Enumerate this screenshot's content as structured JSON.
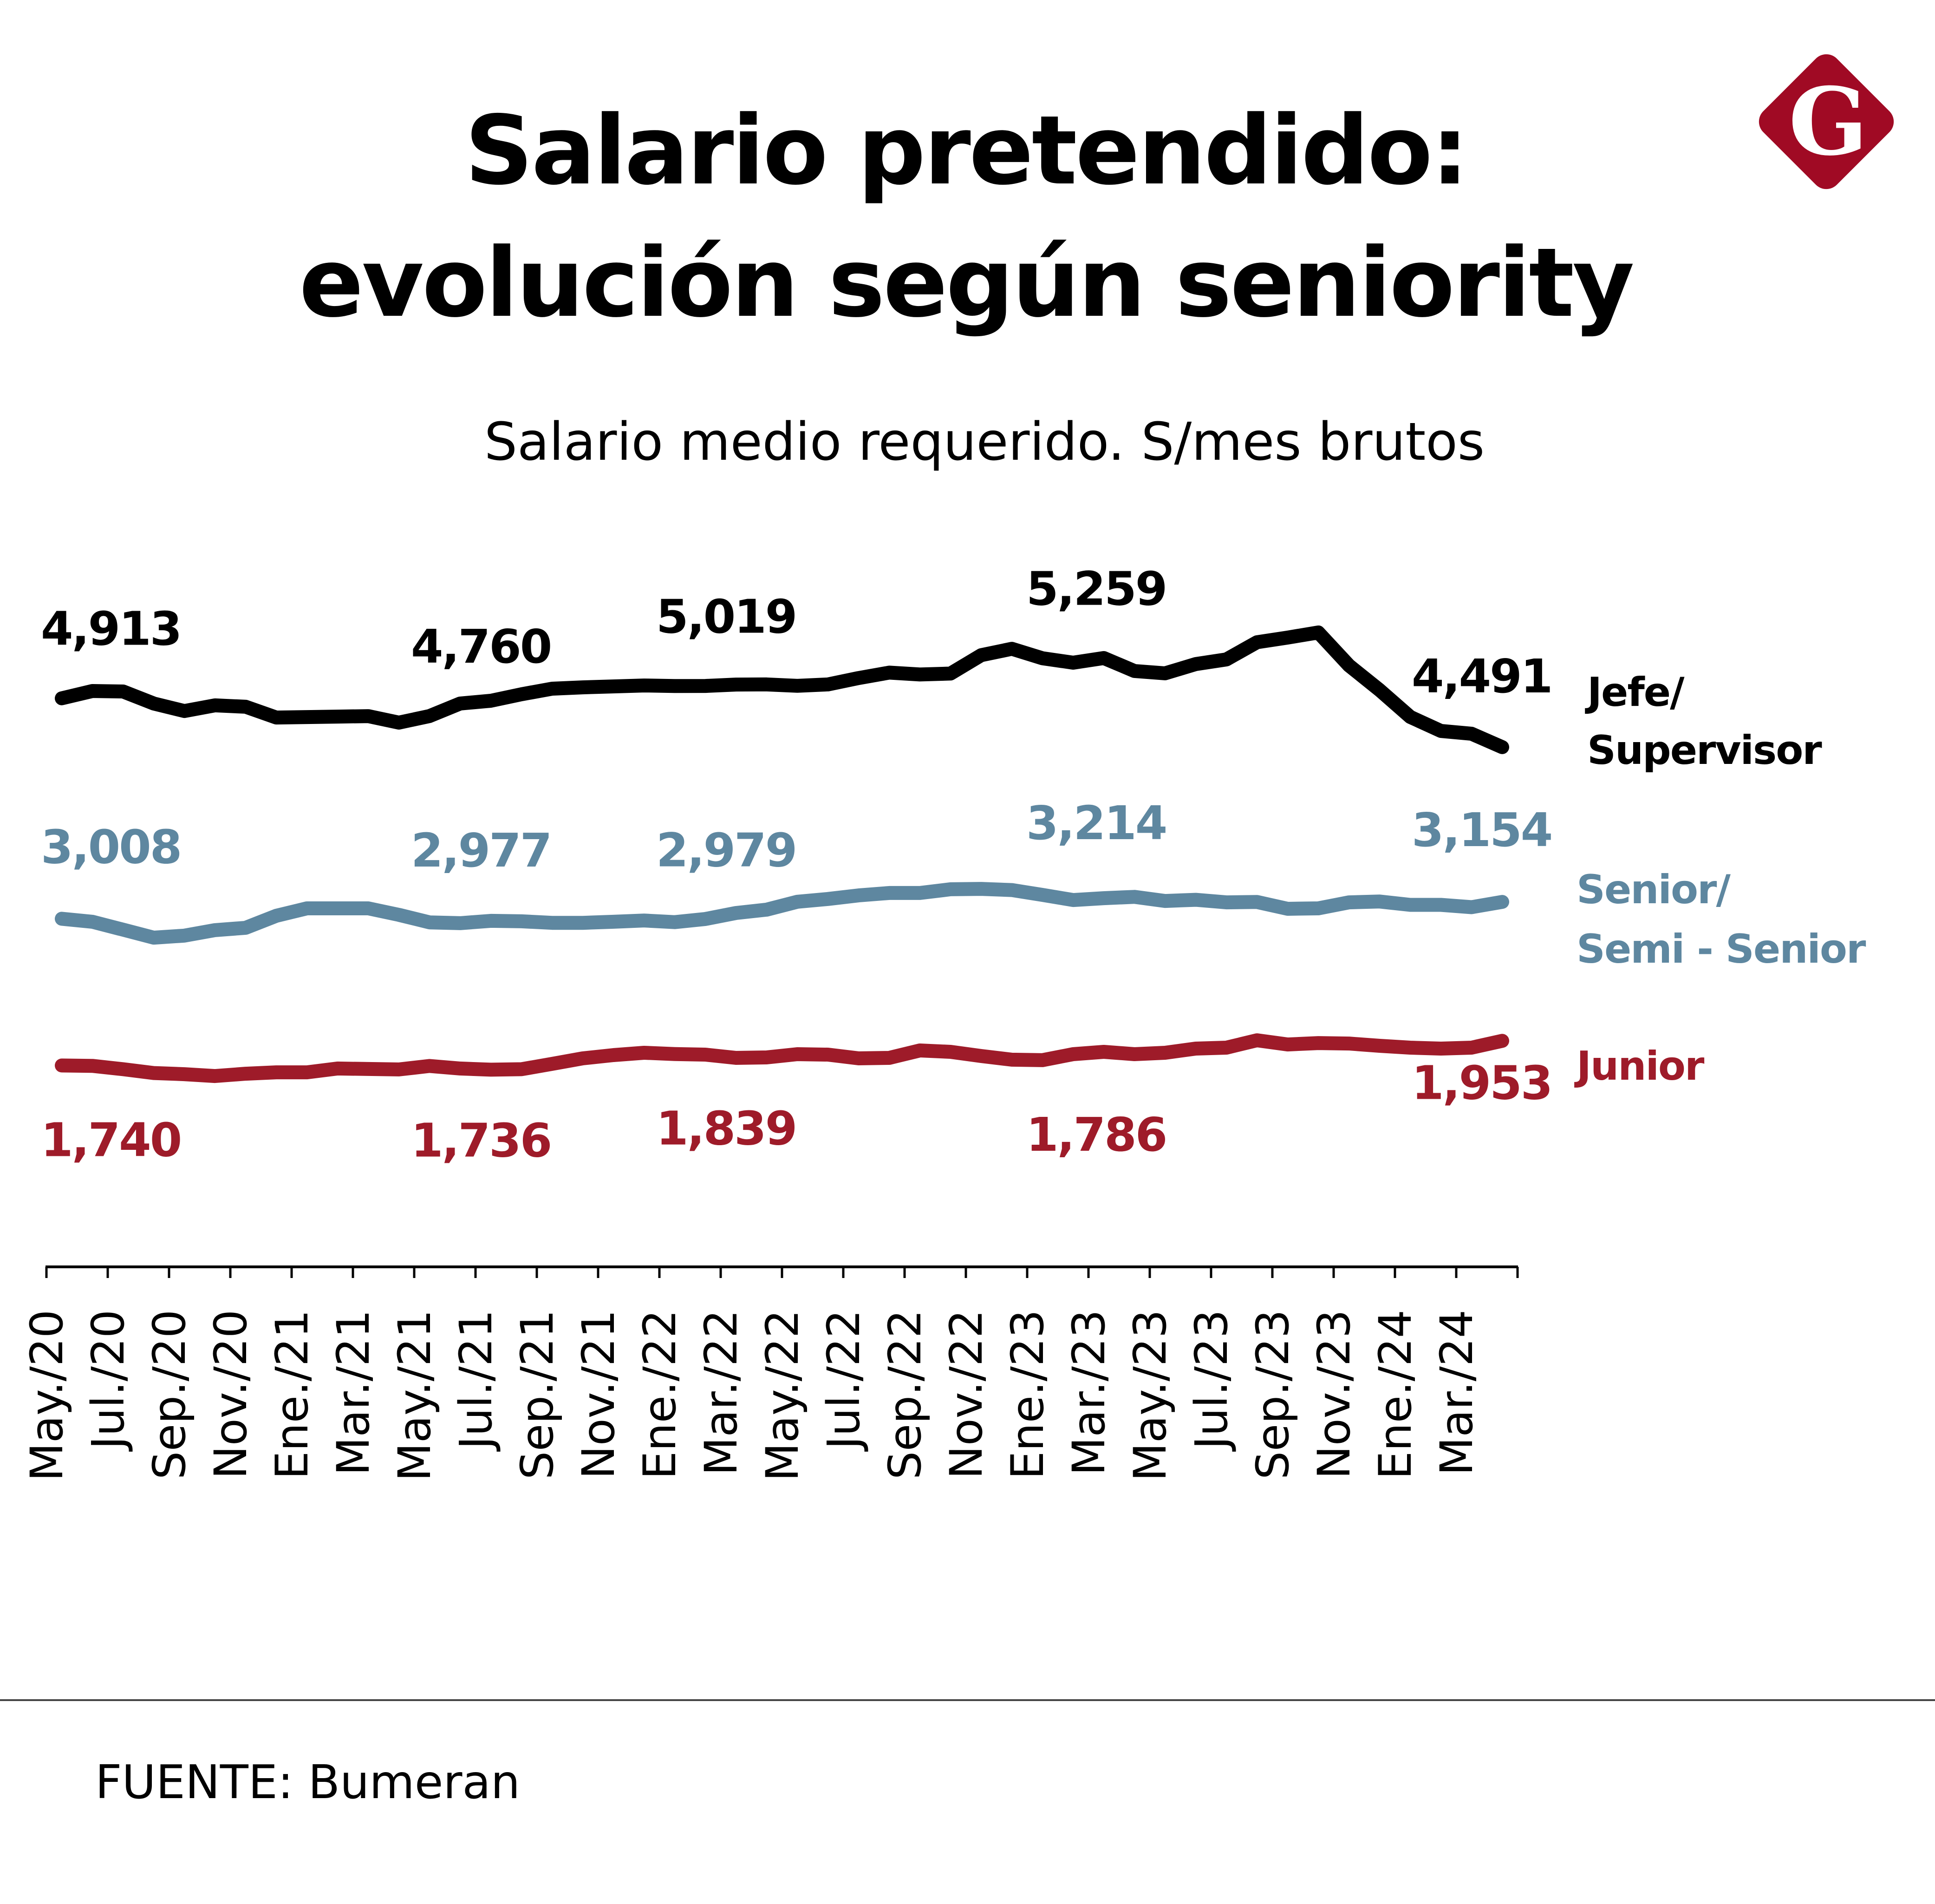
{
  "header": {
    "title_line1": "Salario pretendido:",
    "title_line2": "evolución según seniority",
    "subtitle": "Salario medio requerido. S/mes brutos",
    "logo_letter": "G",
    "logo_icon": "diamond-g-logo-icon"
  },
  "footer": {
    "source": "FUENTE: Bumeran"
  },
  "colors": {
    "jefe": "#000000",
    "senior": "#5e87a0",
    "junior": "#9e1b29",
    "logo": "#a00a24"
  },
  "chart_data": {
    "type": "line",
    "title": "Salario pretendido: evolución según seniority",
    "subtitle": "Salario medio requerido. S/mes brutos",
    "xlabel": "",
    "ylabel": "",
    "ylim": [
      0,
      5500
    ],
    "grid": false,
    "legend": "right (inline labels at line ends)",
    "x": [
      "May./20",
      "Jun./20",
      "Jul./20",
      "Ago./20",
      "Sep./20",
      "Oct./20",
      "Nov./20",
      "Dic./20",
      "Ene./21",
      "Feb./21",
      "Mar./21",
      "Abr./21",
      "May./21",
      "Jun./21",
      "Jul./21",
      "Ago./21",
      "Sep./21",
      "Oct./21",
      "Nov./21",
      "Dic./21",
      "Ene./22",
      "Feb./22",
      "Mar./22",
      "Abr./22",
      "May./22",
      "Jun./22",
      "Jul./22",
      "Ago./22",
      "Sep./22",
      "Oct./22",
      "Nov./22",
      "Dic./22",
      "Ene./23",
      "Feb./23",
      "Mar./23",
      "Abr./23",
      "May./23",
      "Jun./23",
      "Jul./23",
      "Ago./23",
      "Sep./23",
      "Oct./23",
      "Nov./23",
      "Dic./23",
      "Ene./24",
      "Feb./24",
      "Mar./24",
      "Abr./24"
    ],
    "tick_labels": [
      "May./20",
      "Jul./20",
      "Sep./20",
      "Nov./20",
      "Ene./21",
      "Mar./21",
      "May./21",
      "Jul./21",
      "Sep./21",
      "Nov./21",
      "Ene./22",
      "Mar./22",
      "May./22",
      "Jul./22",
      "Sep./22",
      "Nov./22",
      "Ene./23",
      "Mar./23",
      "May./23",
      "Jul./23",
      "Sep./23",
      "Nov./23",
      "Ene./24",
      "Mar./24"
    ],
    "series": [
      {
        "name": "Jefe/ Supervisor",
        "legend_lines": [
          "Jefe/",
          "Supervisor"
        ],
        "color": "#000000",
        "values": [
          4913,
          4976,
          4972,
          4868,
          4803,
          4852,
          4840,
          4747,
          4751,
          4755,
          4759,
          4703,
          4760,
          4868,
          4892,
          4948,
          4996,
          5008,
          5016,
          5024,
          5019,
          5020,
          5032,
          5033,
          5021,
          5033,
          5088,
          5135,
          5119,
          5127,
          5286,
          5341,
          5259,
          5221,
          5261,
          5149,
          5129,
          5209,
          5249,
          5398,
          5438,
          5482,
          5197,
          4984,
          4752,
          4631,
          4607,
          4491
        ],
        "annotations": [
          {
            "index": 0,
            "label": "4,913"
          },
          {
            "index": 12,
            "label": "4,760"
          },
          {
            "index": 20,
            "label": "5,019"
          },
          {
            "index": 32,
            "label": "5,259"
          },
          {
            "index": 47,
            "label": "4,491"
          }
        ]
      },
      {
        "name": "Senior/ Semi - Senior",
        "legend_lines": [
          "Senior/",
          "Semi - Senior"
        ],
        "color": "#5e87a0",
        "values": [
          3008,
          2982,
          2914,
          2845,
          2862,
          2910,
          2930,
          3034,
          3098,
          3098,
          3098,
          3042,
          2977,
          2970,
          2990,
          2986,
          2973,
          2973,
          2982,
          2993,
          2979,
          3006,
          3058,
          3087,
          3155,
          3179,
          3210,
          3231,
          3231,
          3263,
          3266,
          3256,
          3214,
          3170,
          3186,
          3197,
          3162,
          3172,
          3150,
          3153,
          3094,
          3098,
          3150,
          3157,
          3128,
          3128,
          3108,
          3154
        ],
        "annotations": [
          {
            "index": 0,
            "label": "3,008"
          },
          {
            "index": 12,
            "label": "2,977"
          },
          {
            "index": 20,
            "label": "2,979"
          },
          {
            "index": 32,
            "label": "3,214"
          },
          {
            "index": 47,
            "label": "3,154"
          }
        ]
      },
      {
        "name": "Junior",
        "legend_lines": [
          "Junior"
        ],
        "color": "#9e1b29",
        "values": [
          1740,
          1737,
          1708,
          1675,
          1665,
          1649,
          1669,
          1681,
          1681,
          1714,
          1710,
          1706,
          1736,
          1714,
          1704,
          1708,
          1754,
          1802,
          1830,
          1850,
          1839,
          1834,
          1806,
          1810,
          1838,
          1834,
          1802,
          1806,
          1870,
          1858,
          1822,
          1790,
          1786,
          1838,
          1858,
          1838,
          1850,
          1886,
          1894,
          1958,
          1922,
          1934,
          1930,
          1910,
          1894,
          1886,
          1894,
          1953
        ],
        "annotations": [
          {
            "index": 0,
            "label": "1,740"
          },
          {
            "index": 12,
            "label": "1,736"
          },
          {
            "index": 20,
            "label": "1,839"
          },
          {
            "index": 32,
            "label": "1,786"
          },
          {
            "index": 47,
            "label": "1,953"
          }
        ]
      }
    ]
  }
}
